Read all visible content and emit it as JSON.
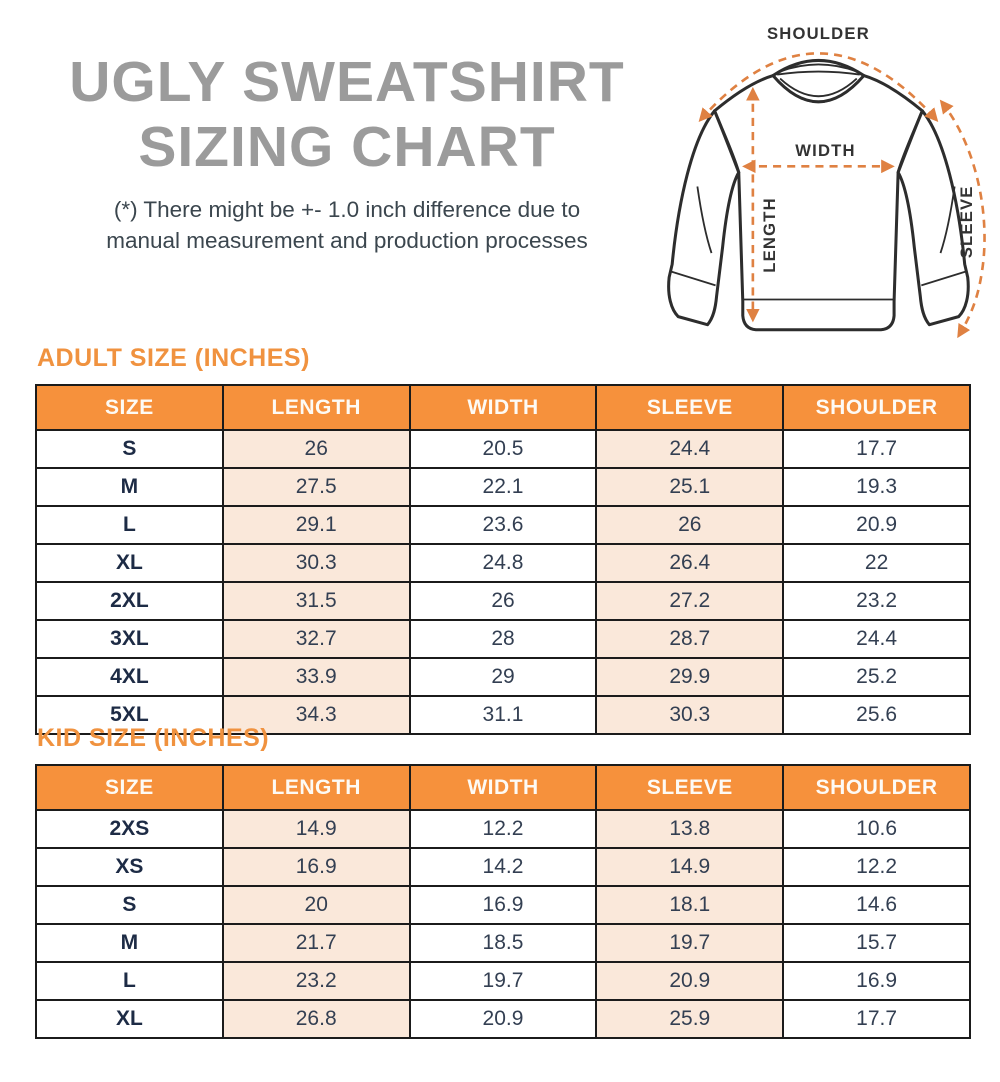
{
  "header": {
    "title_line1": "UGLY SWEATSHIRT",
    "title_line2": "SIZING CHART",
    "disclaimer_line1": "(*) There might be +- 1.0 inch difference due to",
    "disclaimer_line2": "manual measurement and production processes"
  },
  "diagram": {
    "labels": {
      "shoulder": "SHOULDER",
      "width": "WIDTH",
      "length": "LENGTH",
      "sleeve": "SLEEVE"
    }
  },
  "adult_table": {
    "title": "ADULT SIZE (INCHES)",
    "headers": [
      "SIZE",
      "LENGTH",
      "WIDTH",
      "SLEEVE",
      "SHOULDER"
    ],
    "rows": [
      [
        "S",
        "26",
        "20.5",
        "24.4",
        "17.7"
      ],
      [
        "M",
        "27.5",
        "22.1",
        "25.1",
        "19.3"
      ],
      [
        "L",
        "29.1",
        "23.6",
        "26",
        "20.9"
      ],
      [
        "XL",
        "30.3",
        "24.8",
        "26.4",
        "22"
      ],
      [
        "2XL",
        "31.5",
        "26",
        "27.2",
        "23.2"
      ],
      [
        "3XL",
        "32.7",
        "28",
        "28.7",
        "24.4"
      ],
      [
        "4XL",
        "33.9",
        "29",
        "29.9",
        "25.2"
      ],
      [
        "5XL",
        "34.3",
        "31.1",
        "30.3",
        "25.6"
      ]
    ]
  },
  "kid_table": {
    "title": "KID SIZE (INCHES)",
    "headers": [
      "SIZE",
      "LENGTH",
      "WIDTH",
      "SLEEVE",
      "SHOULDER"
    ],
    "rows": [
      [
        "2XS",
        "14.9",
        "12.2",
        "13.8",
        "10.6"
      ],
      [
        "XS",
        "16.9",
        "14.2",
        "14.9",
        "12.2"
      ],
      [
        "S",
        "20",
        "16.9",
        "18.1",
        "14.6"
      ],
      [
        "M",
        "21.7",
        "18.5",
        "19.7",
        "15.7"
      ],
      [
        "L",
        "23.2",
        "19.7",
        "20.9",
        "16.9"
      ],
      [
        "XL",
        "26.8",
        "20.9",
        "25.9",
        "17.7"
      ]
    ]
  },
  "colors": {
    "accent_orange": "#F6913C",
    "section_title_orange": "#F0923F",
    "measure_dash_orange": "#DF8142",
    "peach_cell": "#FAE8DA",
    "size_text_navy": "#1D2B45",
    "value_text": "#333F52",
    "title_gray": "#9B9B9B",
    "table_border": "#1B1B1B"
  }
}
